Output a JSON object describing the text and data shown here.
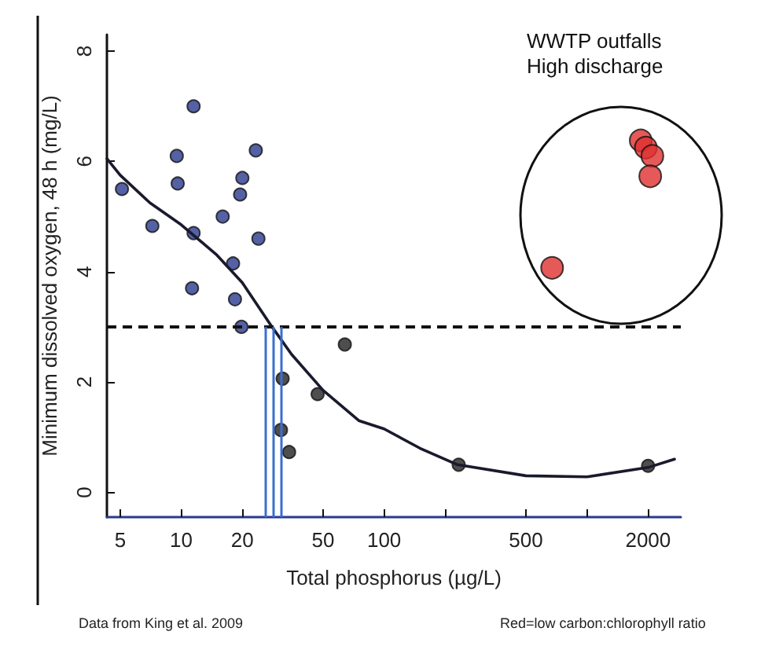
{
  "chart_data": {
    "type": "scatter",
    "xlabel": "Total phosphorus (µg/L)",
    "ylabel": "Minimum dissolved oxygen, 48 h (mg/L)",
    "log": "x",
    "xlim": [
      4.3,
      2900
    ],
    "xticks": [
      5,
      10,
      20,
      50,
      100,
      {
        "value": 200,
        "label": null
      },
      500,
      {
        "value": 1000,
        "label": null
      },
      2000
    ],
    "ylim": [
      -0.45,
      8.3
    ],
    "yticks": [
      0,
      2,
      4,
      6,
      8
    ],
    "grid": false,
    "marker": "circle",
    "series": [
      {
        "color": "#2b3a8f",
        "x": [
          5.1,
          7.2,
          9.5,
          9.6,
          11.5,
          11.5,
          11.3,
          16,
          19.5,
          20,
          23.3,
          24,
          18,
          18.4,
          19.8
        ],
        "values": [
          5.5,
          4.83,
          6.1,
          5.6,
          7.0,
          4.7,
          3.7,
          5.0,
          5.4,
          5.7,
          6.2,
          4.6,
          4.15,
          3.5,
          3.0
        ]
      },
      {
        "color": "#222222",
        "x": [
          31.6,
          31,
          34,
          47,
          64,
          233,
          2000
        ],
        "values": [
          2.06,
          1.13,
          0.73,
          1.78,
          2.68,
          0.5,
          0.48
        ]
      },
      {
        "color": "#e03030",
        "x": [
          1840,
          1950,
          2100,
          2050,
          673
        ],
        "values": [
          6.38,
          6.25,
          6.1,
          5.73,
          4.07
        ]
      },
      {
        "type": "line",
        "color": "#1a1a2e",
        "marker": "none",
        "line_style": "solid",
        "x": [
          4.3,
          5,
          7,
          10,
          15,
          20,
          28,
          35,
          50,
          75,
          100,
          150,
          230,
          500,
          1000,
          2000,
          2700
        ],
        "values": [
          6.05,
          5.75,
          5.25,
          4.85,
          4.3,
          3.8,
          3.0,
          2.5,
          1.85,
          1.3,
          1.15,
          0.8,
          0.5,
          0.3,
          0.28,
          0.45,
          0.6
        ]
      }
    ],
    "ref_lines": [
      {
        "axis": "y",
        "value": 3,
        "color": "#111111",
        "line_style": "dashed"
      },
      {
        "axis": "x",
        "value": 26,
        "color": "#3a6fd0",
        "line_style": "solid"
      },
      {
        "axis": "x",
        "value": 28.5,
        "color": "#3a6fd0",
        "line_style": "solid"
      },
      {
        "axis": "x",
        "value": 31,
        "color": "#3a6fd0",
        "line_style": "solid"
      }
    ],
    "annotations": [
      "WWTP outfalls\nHigh discharge",
      "Data from King et al. 2009",
      "Red=low carbon:chlorophyll ratio"
    ]
  }
}
